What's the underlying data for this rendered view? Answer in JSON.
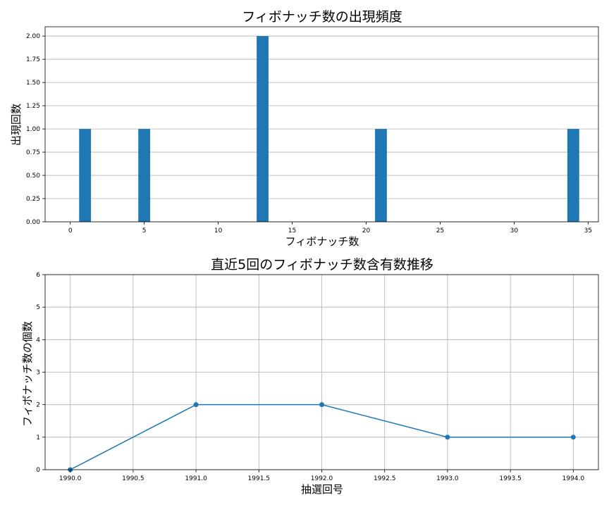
{
  "chart_data": [
    {
      "type": "bar",
      "title": "フィボナッチ数の出現頻度",
      "xlabel": "フィボナッチ数",
      "ylabel": "出現回数",
      "x": [
        1,
        5,
        13,
        21,
        34
      ],
      "values": [
        1,
        1,
        2,
        1,
        1
      ],
      "xlim": [
        -1.7,
        35.7
      ],
      "ylim": [
        0,
        2.1
      ],
      "xticks": [
        0,
        5,
        10,
        15,
        20,
        25,
        30,
        35
      ],
      "xtick_labels": [
        "0",
        "5",
        "10",
        "15",
        "20",
        "25",
        "30",
        "35"
      ],
      "yticks": [
        0,
        0.25,
        0.5,
        0.75,
        1.0,
        1.25,
        1.5,
        1.75,
        2.0
      ],
      "ytick_labels": [
        "0.00",
        "0.25",
        "0.50",
        "0.75",
        "1.00",
        "1.25",
        "1.50",
        "1.75",
        "2.00"
      ],
      "grid": "y",
      "color": "#1f77b4"
    },
    {
      "type": "line",
      "title": "直近5回のフィボナッチ数含有数推移",
      "xlabel": "抽選回号",
      "ylabel": "フィボナッチ数の個数",
      "x": [
        1990,
        1991,
        1992,
        1993,
        1994
      ],
      "y": [
        0,
        2,
        2,
        1,
        1
      ],
      "xlim": [
        1989.8,
        1994.2
      ],
      "ylim": [
        0,
        6
      ],
      "xticks": [
        1990.0,
        1990.5,
        1991.0,
        1991.5,
        1992.0,
        1992.5,
        1993.0,
        1993.5,
        1994.0
      ],
      "xtick_labels": [
        "1990.0",
        "1990.5",
        "1991.0",
        "1991.5",
        "1992.0",
        "1992.5",
        "1993.0",
        "1993.5",
        "1994.0"
      ],
      "yticks": [
        0,
        1,
        2,
        3,
        4,
        5,
        6
      ],
      "ytick_labels": [
        "0",
        "1",
        "2",
        "3",
        "4",
        "5",
        "6"
      ],
      "grid": "both",
      "marker": "circle",
      "color": "#1f77b4"
    }
  ]
}
